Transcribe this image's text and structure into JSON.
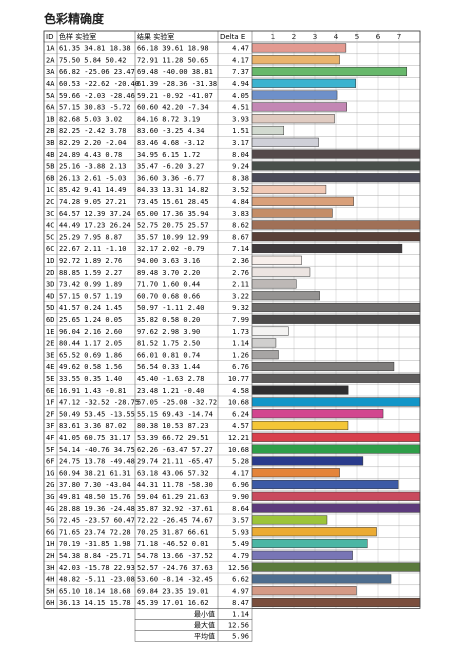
{
  "title": "色彩精确度",
  "columns": {
    "id": "ID",
    "target": "色样 实验室",
    "result": "结果 实验室",
    "delta": "Delta E"
  },
  "summary_labels": [
    "最小值",
    "最大值",
    "平均值"
  ],
  "summary_values": [
    "1.14",
    "12.56",
    "5.96"
  ],
  "chart_data": {
    "type": "bar",
    "title": "色彩精确度",
    "xlabel": "",
    "ylabel": "",
    "xlim": [
      0,
      8
    ],
    "x_ticks": [
      "1",
      "2",
      "3",
      "4",
      "5",
      "6",
      "7"
    ],
    "rows": [
      {
        "id": "1A",
        "target": "61.35 34.81 18.38",
        "result": "66.18 39.61 18.98",
        "delta": 4.47,
        "color": "#e39a91"
      },
      {
        "id": "2A",
        "target": "75.50 5.84 50.42",
        "result": "72.91 11.28 50.65",
        "delta": 4.17,
        "color": "#e9b36d"
      },
      {
        "id": "3A",
        "target": "66.82 -25.06 23.47",
        "result": "69.48 -40.00 38.81",
        "delta": 7.37,
        "color": "#67b86b"
      },
      {
        "id": "4A",
        "target": "60.53 -22.62 -20.40",
        "result": "61.39 -28.36 -31.38",
        "delta": 4.94,
        "color": "#3bb3cf"
      },
      {
        "id": "5A",
        "target": "59.66 -2.03 -28.46",
        "result": "59.21 -0.92 -41.07",
        "delta": 4.05,
        "color": "#6e90c9"
      },
      {
        "id": "6A",
        "target": "57.15 30.83 -5.72",
        "result": "60.60 42.20 -7.34",
        "delta": 4.51,
        "color": "#c387b4"
      },
      {
        "id": "1B",
        "delta": 3.93,
        "target": "82.68 5.03 3.02",
        "result": "84.16 8.72 3.19",
        "color": "#e0cbc1"
      },
      {
        "id": "2B",
        "target": "82.25 -2.42 3.78",
        "result": "83.60 -3.25 4.34",
        "delta": 1.51,
        "color": "#d2dad0"
      },
      {
        "id": "3B",
        "target": "82.29 2.20 -2.04",
        "result": "83.46 4.68 -3.12",
        "delta": 3.17,
        "color": "#cfd0d8"
      },
      {
        "id": "4B",
        "target": "24.89 4.43 0.78",
        "result": "34.95 6.15 1.72",
        "delta": 8.04,
        "color": "#54494a"
      },
      {
        "id": "5B",
        "target": "25.16 -3.88 2.13",
        "result": "35.47 -6.20 3.27",
        "delta": 9.24,
        "color": "#484f4a"
      },
      {
        "id": "6B",
        "target": "26.13 2.61 -5.03",
        "result": "36.60 3.36 -6.77",
        "delta": 8.38,
        "color": "#4a4a58"
      },
      {
        "id": "1C",
        "target": "85.42 9.41 14.49",
        "result": "84.33 13.31 14.82",
        "delta": 3.52,
        "color": "#f0c9b5"
      },
      {
        "id": "2C",
        "target": "74.28 9.05 27.21",
        "result": "73.45 15.61 28.45",
        "delta": 4.84,
        "color": "#d9a07a"
      },
      {
        "id": "3C",
        "target": "64.57 12.39 37.24",
        "result": "65.00 17.36 35.94",
        "delta": 3.83,
        "color": "#c48d67"
      },
      {
        "id": "4C",
        "target": "44.49 17.23 26.24",
        "result": "52.75 20.75 25.57",
        "delta": 8.62,
        "color": "#a07057"
      },
      {
        "id": "5C",
        "target": "25.29 7.95 8.87",
        "result": "35.57 10.99 12.99",
        "delta": 8.67,
        "color": "#5a4038"
      },
      {
        "id": "6C",
        "target": "22.67 2.11 -1.10",
        "result": "32.17 2.02 -0.79",
        "delta": 7.14,
        "color": "#3f3a3c"
      },
      {
        "id": "1D",
        "target": "92.72 1.89 2.76",
        "result": "94.00 3.63 3.16",
        "delta": 2.36,
        "color": "#f7efeb"
      },
      {
        "id": "2D",
        "target": "88.85 1.59 2.27",
        "result": "89.48 3.70 2.20",
        "delta": 2.76,
        "color": "#ece4e1"
      },
      {
        "id": "3D",
        "target": "73.42 0.99 1.89",
        "result": "71.70 1.60 0.44",
        "delta": 2.11,
        "color": "#bdb8b6"
      },
      {
        "id": "4D",
        "target": "57.15 0.57 1.19",
        "result": "60.70 0.68 0.66",
        "delta": 3.22,
        "color": "#959392"
      },
      {
        "id": "5D",
        "target": "41.57 0.24 1.45",
        "result": "50.97 -1.11 2.40",
        "delta": 9.32,
        "color": "#706e6d"
      },
      {
        "id": "6D",
        "target": "25.65 1.24 0.05",
        "result": "35.82 0.58 0.20",
        "delta": 7.99,
        "color": "#4d4b4b"
      },
      {
        "id": "1E",
        "target": "96.04 2.16 2.60",
        "result": "97.62 2.98 3.90",
        "delta": 1.73,
        "color": "#f4f3f2"
      },
      {
        "id": "2E",
        "target": "80.44 1.17 2.05",
        "result": "81.52 1.75 2.50",
        "delta": 1.14,
        "color": "#d0cfce"
      },
      {
        "id": "3E",
        "target": "65.52 0.69 1.86",
        "result": "66.01 0.81 0.74",
        "delta": 1.26,
        "color": "#a7a5a4"
      },
      {
        "id": "4E",
        "target": "49.62 0.58 1.56",
        "result": "56.54 0.33 1.44",
        "delta": 6.76,
        "color": "#7f7d7c"
      },
      {
        "id": "5E",
        "target": "33.55 0.35 1.40",
        "result": "45.40 -1.63 2.78",
        "delta": 10.77,
        "color": "#5e5c5c"
      },
      {
        "id": "6E",
        "target": "16.91 1.43 -0.81",
        "result": "23.48 1.21 -0.40",
        "delta": 4.58,
        "color": "#2f2e30"
      },
      {
        "id": "1F",
        "target": "47.12 -32.52 -28.75",
        "result": "57.05 -25.08 -32.72",
        "delta": 10.68,
        "color": "#1296c8"
      },
      {
        "id": "2F",
        "target": "50.49 53.45 -13.55",
        "result": "55.15 69.43 -14.74",
        "delta": 6.24,
        "color": "#d2468f"
      },
      {
        "id": "3F",
        "target": "83.61 3.36 87.02",
        "result": "80.38 10.53 87.23",
        "delta": 4.57,
        "color": "#f4c637"
      },
      {
        "id": "4F",
        "target": "41.05 60.75 31.17",
        "result": "53.39 66.72 29.51",
        "delta": 12.21,
        "color": "#d8404c"
      },
      {
        "id": "5F",
        "target": "54.14 -40.76 34.75",
        "result": "62.26 -63.47 57.27",
        "delta": 10.68,
        "color": "#2f9e49"
      },
      {
        "id": "6F",
        "target": "24.75 13.78 -49.48",
        "result": "29.74 21.11 -65.47",
        "delta": 5.28,
        "color": "#2a3b8c"
      },
      {
        "id": "1G",
        "target": "60.94 38.21 61.31",
        "result": "63.18 43.06 57.32",
        "delta": 4.17,
        "color": "#e4843a"
      },
      {
        "id": "2G",
        "target": "37.80 7.30 -43.04",
        "result": "44.31 11.78 -58.30",
        "delta": 6.96,
        "color": "#3c5aa6"
      },
      {
        "id": "3G",
        "target": "49.81 48.50 15.76",
        "result": "59.04 61.29 21.63",
        "delta": 9.9,
        "color": "#c94a5e"
      },
      {
        "id": "4G",
        "target": "28.88 19.36 -24.48",
        "result": "35.87 32.92 -37.61",
        "delta": 8.64,
        "color": "#5c3a7c"
      },
      {
        "id": "5G",
        "target": "72.45 -23.57 60.47",
        "result": "72.22 -26.45 74.67",
        "delta": 3.57,
        "color": "#9cc43a"
      },
      {
        "id": "6G",
        "target": "71.65 23.74 72.28",
        "result": "70.25 31.87 66.61",
        "delta": 5.93,
        "color": "#ebab33"
      },
      {
        "id": "1H",
        "target": "70.19 -31.85 1.98",
        "result": "71.18 -46.52 0.01",
        "delta": 5.49,
        "color": "#4bb6a4"
      },
      {
        "id": "2H",
        "target": "54.38 8.84 -25.71",
        "result": "54.78 13.66 -37.52",
        "delta": 4.79,
        "color": "#7875b5"
      },
      {
        "id": "3H",
        "target": "42.03 -15.78 22.93",
        "result": "52.57 -24.76 37.63",
        "delta": 12.56,
        "color": "#5b7a3c"
      },
      {
        "id": "4H",
        "target": "48.82 -5.11 -23.08",
        "result": "53.60 -8.14 -32.45",
        "delta": 6.62,
        "color": "#4d6d8e"
      },
      {
        "id": "5H",
        "target": "65.10 18.14 18.68",
        "result": "69.84 23.35 19.01",
        "delta": 4.97,
        "color": "#d49a86"
      },
      {
        "id": "6H",
        "target": "36.13 14.15 15.78",
        "result": "45.39 17.01 16.62",
        "delta": 8.47,
        "color": "#7a4e3d"
      }
    ]
  }
}
